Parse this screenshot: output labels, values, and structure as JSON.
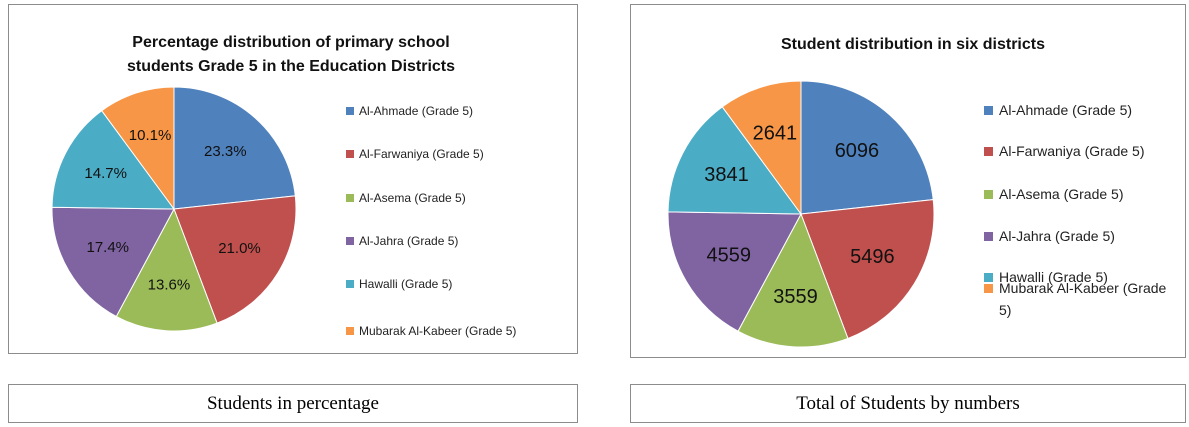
{
  "chart_data": [
    {
      "type": "pie",
      "title": "Percentage distribution of primary school students Grade 5 in the Education Districts",
      "categories": [
        "Al-Ahmade (Grade 5)",
        "Al-Farwaniya (Grade 5)",
        "Al-Asema (Grade 5)",
        "Al-Jahra (Grade 5)",
        "Hawalli (Grade 5)",
        "Mubarak Al-Kabeer (Grade 5)"
      ],
      "values": [
        23.3,
        21.0,
        13.6,
        17.4,
        14.7,
        10.1
      ],
      "value_labels": [
        "23.3%",
        "21.0%",
        "13.6%",
        "17.4%",
        "14.7%",
        "10.1%"
      ],
      "colors": [
        "#4f81bd",
        "#c0504d",
        "#9bbb59",
        "#8064a2",
        "#4bacc6",
        "#f79646"
      ],
      "legend": "right"
    },
    {
      "type": "pie",
      "title": "Student distribution in six districts",
      "categories": [
        "Al-Ahmade (Grade 5)",
        "Al-Farwaniya (Grade 5)",
        "Al-Asema (Grade 5)",
        "Al-Jahra (Grade 5)",
        "Hawalli (Grade 5)",
        "Mubarak Al-Kabeer (Grade 5)"
      ],
      "values": [
        6096,
        5496,
        3559,
        4559,
        3841,
        2641
      ],
      "colors": [
        "#4f81bd",
        "#c0504d",
        "#9bbb59",
        "#8064a2",
        "#4bacc6",
        "#f79646"
      ],
      "legend": "right"
    }
  ],
  "captions": [
    "Students in percentage",
    "Total of Students by numbers"
  ]
}
